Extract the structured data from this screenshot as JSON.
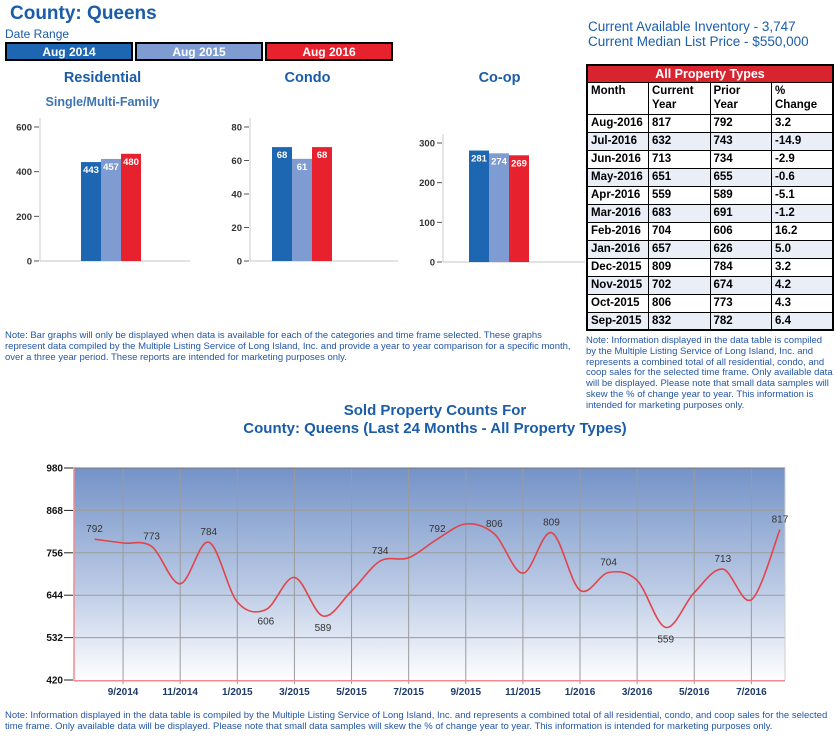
{
  "page": {
    "title": "County: Queens",
    "date_range_label": "Date Range",
    "legend": [
      {
        "label": "Aug 2014",
        "color": "#1D66B2"
      },
      {
        "label": "Aug 2015",
        "color": "#7F9CD2"
      },
      {
        "label": "Aug 2016",
        "color": "#E8212E"
      }
    ],
    "inventory_line": "Current Available Inventory - 3,747",
    "median_line": "Current Median List Price - $550,000",
    "note_left": "Note: Bar graphs will only be displayed when data is available for each of the categories and time frame selected. These graphs represent data compiled by the Multiple Listing Service of Long Island, Inc. and provide a year to year comparison for a specific month, over a three year period. These reports are intended for marketing purposes only.",
    "note_right": "Note: Information displayed in the data table is compiled by the Multiple  Listing Service of Long Island, Inc. and represents a combined total of all residential, condo, and coop sales for the selected time frame. Only available data will be displayed. Please note that small data samples will skew the % of change year to year. This information is intended for marketing purposes only.",
    "note_bottom": "Note: Information displayed in the data table is compiled by the Multiple  Listing Service of Long Island, Inc. and represents a combined total of all residential, condo, and coop sales for the selected time frame. Only available data will be displayed. Please note that small data samples will skew the % of change year to year. This information is intended for marketing purposes only."
  },
  "table": {
    "title": "All Property Types",
    "title_bg": "#D8242F",
    "columns": [
      "Month",
      "Current\nYear",
      "Prior\nYear",
      "%\nChange"
    ],
    "rows": [
      [
        "Aug-2016",
        "817",
        "792",
        "3.2"
      ],
      [
        "Jul-2016",
        "632",
        "743",
        "-14.9"
      ],
      [
        "Jun-2016",
        "713",
        "734",
        "-2.9"
      ],
      [
        "May-2016",
        "651",
        "655",
        "-0.6"
      ],
      [
        "Apr-2016",
        "559",
        "589",
        "-5.1"
      ],
      [
        "Mar-2016",
        "683",
        "691",
        "-1.2"
      ],
      [
        "Feb-2016",
        "704",
        "606",
        "16.2"
      ],
      [
        "Jan-2016",
        "657",
        "626",
        "5.0"
      ],
      [
        "Dec-2015",
        "809",
        "784",
        "3.2"
      ],
      [
        "Nov-2015",
        "702",
        "674",
        "4.2"
      ],
      [
        "Oct-2015",
        "806",
        "773",
        "4.3"
      ],
      [
        "Sep-2015",
        "832",
        "782",
        "6.4"
      ]
    ]
  },
  "chart_data": [
    {
      "type": "bar",
      "title": "Residential",
      "subtitle": "Single/Multi-Family",
      "categories": [
        "Aug 2014",
        "Aug 2015",
        "Aug 2016"
      ],
      "values": [
        443,
        457,
        480
      ],
      "yticks": [
        0,
        200,
        400,
        600
      ],
      "ylim": [
        0,
        600
      ],
      "bar_colors": [
        "#1D66B2",
        "#7F9CD2",
        "#E8212E"
      ],
      "legend_position": "top-of-page"
    },
    {
      "type": "bar",
      "title": "Condo",
      "subtitle": "",
      "categories": [
        "Aug 2014",
        "Aug 2015",
        "Aug 2016"
      ],
      "values": [
        68,
        61,
        68
      ],
      "yticks": [
        0,
        20,
        40,
        60,
        80
      ],
      "ylim": [
        0,
        80
      ],
      "bar_colors": [
        "#1D66B2",
        "#7F9CD2",
        "#E8212E"
      ],
      "legend_position": "top-of-page"
    },
    {
      "type": "bar",
      "title": "Co-op",
      "subtitle": "",
      "categories": [
        "Aug 2014",
        "Aug 2015",
        "Aug 2016"
      ],
      "values": [
        281,
        274,
        269
      ],
      "yticks": [
        0,
        100,
        200,
        300
      ],
      "ylim": [
        0,
        350
      ],
      "bar_colors": [
        "#1D66B2",
        "#7F9CD2",
        "#E8212E"
      ],
      "legend_position": "top-of-page"
    },
    {
      "type": "line",
      "title": "Sold Property Counts For",
      "subtitle": "County: Queens (Last 24 Months - All Property Types)",
      "x": [
        "8/2014",
        "9/2014",
        "10/2014",
        "11/2014",
        "12/2014",
        "1/2015",
        "2/2015",
        "3/2015",
        "4/2015",
        "5/2015",
        "6/2015",
        "7/2015",
        "8/2015",
        "9/2015",
        "10/2015",
        "11/2015",
        "12/2015",
        "1/2016",
        "2/2016",
        "3/2016",
        "4/2016",
        "5/2016",
        "6/2016",
        "7/2016",
        "8/2016"
      ],
      "values": [
        792,
        782,
        773,
        674,
        784,
        626,
        606,
        691,
        589,
        655,
        734,
        743,
        792,
        832,
        806,
        702,
        809,
        657,
        704,
        683,
        559,
        651,
        713,
        632,
        817
      ],
      "xticks": [
        "9/2014",
        "11/2014",
        "1/2015",
        "3/2015",
        "5/2015",
        "7/2015",
        "9/2015",
        "11/2015",
        "1/2016",
        "3/2016",
        "5/2016",
        "7/2016"
      ],
      "yticks": [
        420,
        532,
        644,
        756,
        868,
        980
      ],
      "ylim": [
        420,
        980
      ],
      "point_labels": [
        {
          "index": 0,
          "text": "792",
          "position": "above"
        },
        {
          "index": 2,
          "text": "773",
          "position": "above"
        },
        {
          "index": 4,
          "text": "784",
          "position": "above"
        },
        {
          "index": 6,
          "text": "606",
          "position": "below"
        },
        {
          "index": 8,
          "text": "589",
          "position": "below"
        },
        {
          "index": 10,
          "text": "734",
          "position": "above"
        },
        {
          "index": 12,
          "text": "792",
          "position": "above"
        },
        {
          "index": 14,
          "text": "806",
          "position": "above"
        },
        {
          "index": 16,
          "text": "809",
          "position": "above"
        },
        {
          "index": 18,
          "text": "704",
          "position": "above"
        },
        {
          "index": 20,
          "text": "559",
          "position": "below"
        },
        {
          "index": 22,
          "text": "713",
          "position": "above"
        },
        {
          "index": 24,
          "text": "817",
          "position": "above"
        }
      ],
      "line_color": "#E0454C",
      "bg_gradient_top": "#7493C8",
      "bg_gradient_bottom": "#FEFEFF",
      "grid": true
    }
  ]
}
